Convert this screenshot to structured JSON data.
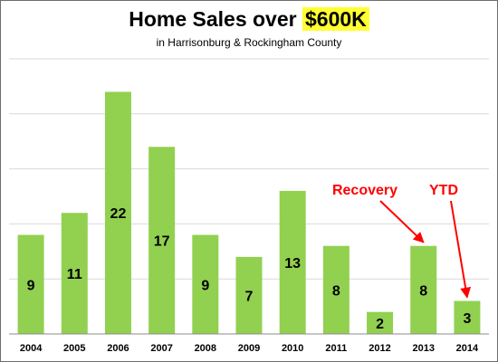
{
  "chart_data": {
    "type": "bar",
    "title_prefix": "Home Sales over",
    "title_highlight": "$600K",
    "subtitle": "in Harrisonburg & Rockingham County",
    "categories": [
      "2004",
      "2005",
      "2006",
      "2007",
      "2008",
      "2009",
      "2010",
      "2011",
      "2012",
      "2013",
      "2014"
    ],
    "values": [
      9,
      11,
      22,
      17,
      9,
      7,
      13,
      8,
      2,
      8,
      3
    ],
    "ylim": [
      0,
      25
    ],
    "grid": true,
    "bar_color": "#92d050",
    "highlight_color": "#ffff33",
    "annotation_color": "#ff0000",
    "annotations": [
      {
        "text": "Recovery",
        "target": "2013"
      },
      {
        "text": "YTD",
        "target": "2014"
      }
    ]
  }
}
